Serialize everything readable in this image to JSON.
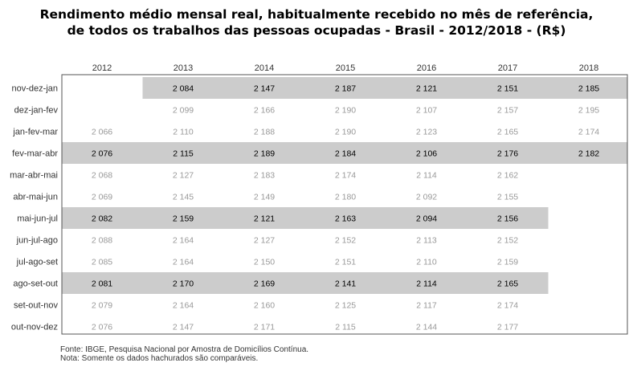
{
  "chart_data": {
    "type": "table",
    "title": "Rendimento médio mensal real, habitualmente recebido no mês de referência,",
    "subtitle": "de todos os trabalhos das pessoas ocupadas - Brasil - 2012/2018 - (R$)",
    "columns": [
      "2012",
      "2013",
      "2014",
      "2015",
      "2016",
      "2017",
      "2018"
    ],
    "rows": [
      {
        "label": "nov-dez-jan",
        "highlight": true,
        "values": [
          null,
          "2 084",
          "2 147",
          "2 187",
          "2 121",
          "2 151",
          "2 185"
        ]
      },
      {
        "label": "dez-jan-fev",
        "highlight": false,
        "values": [
          null,
          "2 099",
          "2 166",
          "2 190",
          "2 107",
          "2 157",
          "2 195"
        ]
      },
      {
        "label": "jan-fev-mar",
        "highlight": false,
        "values": [
          "2 066",
          "2 110",
          "2 188",
          "2 190",
          "2 123",
          "2 165",
          "2 174"
        ]
      },
      {
        "label": "fev-mar-abr",
        "highlight": true,
        "values": [
          "2 076",
          "2 115",
          "2 189",
          "2 184",
          "2 106",
          "2 176",
          "2 182"
        ]
      },
      {
        "label": "mar-abr-mai",
        "highlight": false,
        "values": [
          "2 068",
          "2 127",
          "2 183",
          "2 174",
          "2 114",
          "2 162",
          null
        ]
      },
      {
        "label": "abr-mai-jun",
        "highlight": false,
        "values": [
          "2 069",
          "2 145",
          "2 149",
          "2 180",
          "2 092",
          "2 155",
          null
        ]
      },
      {
        "label": "mai-jun-jul",
        "highlight": true,
        "values": [
          "2 082",
          "2 159",
          "2 121",
          "2 163",
          "2 094",
          "2 156",
          null
        ]
      },
      {
        "label": "jun-jul-ago",
        "highlight": false,
        "values": [
          "2 088",
          "2 164",
          "2 127",
          "2 152",
          "2 113",
          "2 152",
          null
        ]
      },
      {
        "label": "jul-ago-set",
        "highlight": false,
        "values": [
          "2 085",
          "2 164",
          "2 150",
          "2 151",
          "2 110",
          "2 159",
          null
        ]
      },
      {
        "label": "ago-set-out",
        "highlight": true,
        "values": [
          "2 081",
          "2 170",
          "2 169",
          "2 141",
          "2 114",
          "2 165",
          null
        ]
      },
      {
        "label": "set-out-nov",
        "highlight": false,
        "values": [
          "2 079",
          "2 164",
          "2 160",
          "2 125",
          "2 117",
          "2 174",
          null
        ]
      },
      {
        "label": "out-nov-dez",
        "highlight": false,
        "values": [
          "2 076",
          "2 147",
          "2 171",
          "2 115",
          "2 144",
          "2 177",
          null
        ]
      }
    ],
    "colors": {
      "highlight_fill": "#cccccc",
      "highlight_text": "#000000",
      "normal_text": "#999999",
      "label_text": "#333333",
      "border": "#555555"
    }
  },
  "footer": {
    "source": "Fonte: IBGE, Pesquisa Nacional por Amostra de Domicílios Contínua.",
    "note": "Nota: Somente os dados hachurados são comparáveis."
  }
}
